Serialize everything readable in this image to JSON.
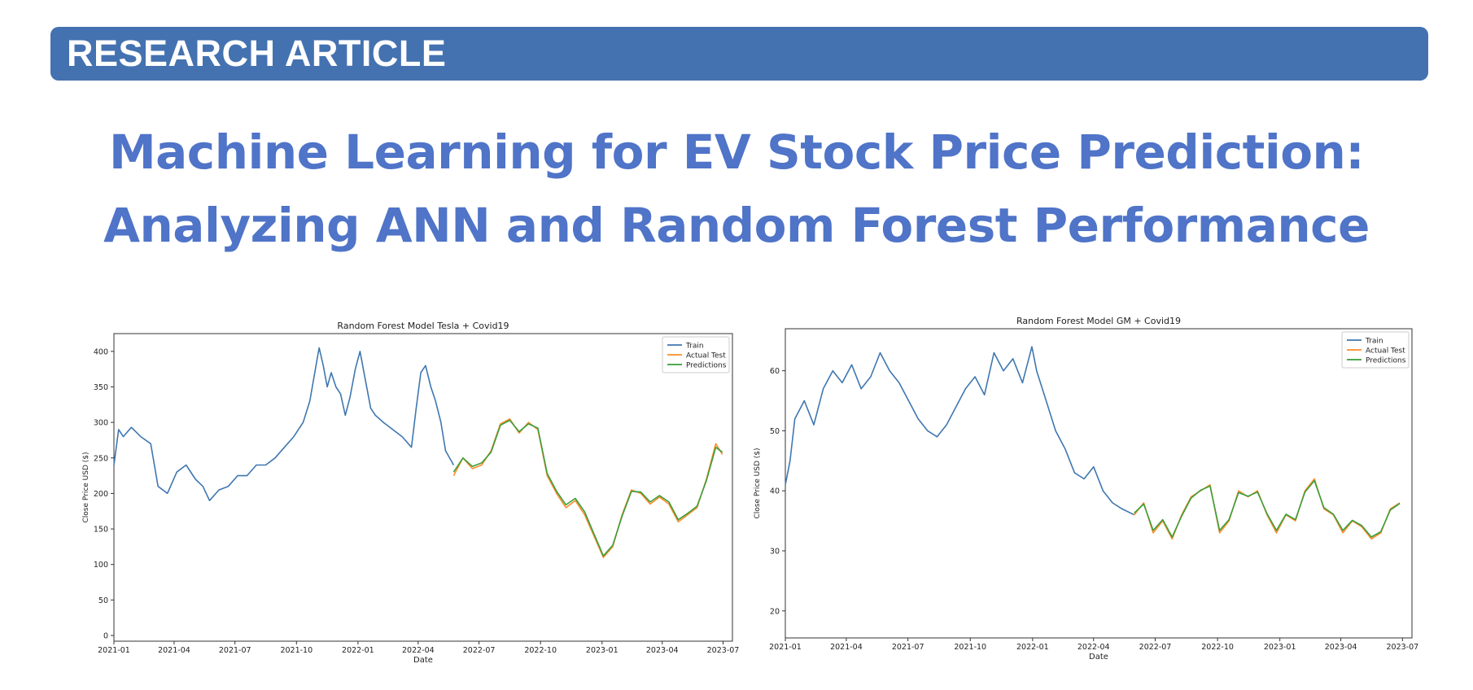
{
  "header": {
    "banner_label": "RESEARCH ARTICLE",
    "title_line_1": "Machine Learning for EV Stock Price Prediction:",
    "title_line_2": "Analyzing ANN and Random Forest Performance",
    "banner_color": "#4472b0",
    "title_color": "#4f74c8"
  },
  "series_colors": {
    "Train": "#3f77b0",
    "Actual Test": "#ff8c2a",
    "Predictions": "#3a9e3a"
  },
  "chart_data": [
    {
      "type": "line",
      "title": "Random Forest Model Tesla + Covid19",
      "xlabel": "Date",
      "ylabel": "Close Price USD ($)",
      "xlim": [
        "2021-01-01",
        "2023-07-15"
      ],
      "ylim": [
        -8,
        425
      ],
      "xticks": [
        "2021-01",
        "2021-04",
        "2021-07",
        "2021-10",
        "2022-01",
        "2022-04",
        "2022-07",
        "2022-10",
        "2023-01",
        "2023-04",
        "2023-07"
      ],
      "yticks": [
        0,
        50,
        100,
        150,
        200,
        250,
        300,
        350,
        400
      ],
      "legend_position": "top-right",
      "grid": false,
      "series": [
        {
          "name": "Train",
          "x": [
            "2021-01-01",
            "2021-01-08",
            "2021-01-15",
            "2021-01-27",
            "2021-02-10",
            "2021-02-25",
            "2021-03-08",
            "2021-03-22",
            "2021-04-05",
            "2021-04-19",
            "2021-05-03",
            "2021-05-14",
            "2021-05-24",
            "2021-06-07",
            "2021-06-21",
            "2021-07-05",
            "2021-07-19",
            "2021-08-02",
            "2021-08-16",
            "2021-08-30",
            "2021-09-13",
            "2021-09-27",
            "2021-10-11",
            "2021-10-21",
            "2021-11-01",
            "2021-11-04",
            "2021-11-10",
            "2021-11-16",
            "2021-11-22",
            "2021-11-29",
            "2021-12-06",
            "2021-12-13",
            "2021-12-20",
            "2021-12-28",
            "2022-01-04",
            "2022-01-12",
            "2022-01-20",
            "2022-01-27",
            "2022-02-08",
            "2022-02-22",
            "2022-03-08",
            "2022-03-22",
            "2022-03-29",
            "2022-04-05",
            "2022-04-12",
            "2022-04-20",
            "2022-04-27",
            "2022-05-05",
            "2022-05-12",
            "2022-05-24"
          ],
          "values": [
            240,
            290,
            280,
            293,
            280,
            270,
            210,
            200,
            230,
            240,
            220,
            210,
            190,
            205,
            210,
            225,
            225,
            240,
            240,
            250,
            265,
            280,
            300,
            330,
            390,
            405,
            380,
            350,
            370,
            350,
            340,
            310,
            335,
            375,
            400,
            360,
            320,
            310,
            300,
            290,
            280,
            265,
            320,
            370,
            380,
            350,
            330,
            300,
            260,
            240
          ]
        },
        {
          "name": "Actual Test",
          "x": [
            "2022-05-24",
            "2022-06-07",
            "2022-06-21",
            "2022-07-05",
            "2022-07-19",
            "2022-08-02",
            "2022-08-16",
            "2022-08-30",
            "2022-09-13",
            "2022-09-27",
            "2022-10-11",
            "2022-10-25",
            "2022-11-08",
            "2022-11-22",
            "2022-12-06",
            "2022-12-20",
            "2023-01-03",
            "2023-01-17",
            "2023-01-31",
            "2023-02-14",
            "2023-02-28",
            "2023-03-14",
            "2023-03-28",
            "2023-04-11",
            "2023-04-25",
            "2023-05-09",
            "2023-05-23",
            "2023-06-06",
            "2023-06-20",
            "2023-06-30"
          ],
          "values": [
            225,
            250,
            235,
            240,
            260,
            298,
            305,
            285,
            300,
            290,
            225,
            200,
            180,
            190,
            170,
            140,
            110,
            125,
            170,
            205,
            200,
            185,
            195,
            185,
            160,
            170,
            180,
            220,
            270,
            255
          ]
        },
        {
          "name": "Predictions",
          "x": [
            "2022-05-24",
            "2022-06-07",
            "2022-06-21",
            "2022-07-05",
            "2022-07-19",
            "2022-08-02",
            "2022-08-16",
            "2022-08-30",
            "2022-09-13",
            "2022-09-27",
            "2022-10-11",
            "2022-10-25",
            "2022-11-08",
            "2022-11-22",
            "2022-12-06",
            "2022-12-20",
            "2023-01-03",
            "2023-01-17",
            "2023-01-31",
            "2023-02-14",
            "2023-02-28",
            "2023-03-14",
            "2023-03-28",
            "2023-04-11",
            "2023-04-25",
            "2023-05-09",
            "2023-05-23",
            "2023-06-06",
            "2023-06-20",
            "2023-06-30"
          ],
          "values": [
            230,
            250,
            238,
            243,
            258,
            296,
            303,
            287,
            298,
            292,
            228,
            203,
            184,
            193,
            174,
            143,
            112,
            127,
            168,
            203,
            202,
            188,
            197,
            188,
            163,
            172,
            182,
            218,
            265,
            258
          ]
        }
      ]
    },
    {
      "type": "line",
      "title": "Random Forest Model GM + Covid19",
      "xlabel": "Date",
      "ylabel": "Close Price USD ($)",
      "xlim": [
        "2021-01-01",
        "2023-07-15"
      ],
      "ylim": [
        15.5,
        67
      ],
      "xticks": [
        "2021-01",
        "2021-04",
        "2021-07",
        "2021-10",
        "2022-01",
        "2022-04",
        "2022-07",
        "2022-10",
        "2023-01",
        "2023-04",
        "2023-07"
      ],
      "yticks": [
        20,
        30,
        40,
        50,
        60
      ],
      "legend_position": "top-right",
      "grid": false,
      "series": [
        {
          "name": "Train",
          "x": [
            "2021-01-01",
            "2021-01-08",
            "2021-01-15",
            "2021-01-29",
            "2021-02-12",
            "2021-02-26",
            "2021-03-12",
            "2021-03-26",
            "2021-04-09",
            "2021-04-23",
            "2021-05-07",
            "2021-05-21",
            "2021-06-04",
            "2021-06-18",
            "2021-07-02",
            "2021-07-16",
            "2021-07-30",
            "2021-08-13",
            "2021-08-27",
            "2021-09-10",
            "2021-09-24",
            "2021-10-08",
            "2021-10-22",
            "2021-11-05",
            "2021-11-19",
            "2021-12-03",
            "2021-12-17",
            "2021-12-31",
            "2022-01-07",
            "2022-01-21",
            "2022-02-04",
            "2022-02-18",
            "2022-03-04",
            "2022-03-18",
            "2022-04-01",
            "2022-04-15",
            "2022-04-29",
            "2022-05-13",
            "2022-05-31"
          ],
          "values": [
            41,
            45,
            52,
            55,
            51,
            57,
            60,
            58,
            61,
            57,
            59,
            63,
            60,
            58,
            55,
            52,
            50,
            49,
            51,
            54,
            57,
            59,
            56,
            63,
            60,
            62,
            58,
            64,
            60,
            55,
            50,
            47,
            43,
            42,
            44,
            40,
            38,
            37,
            36
          ]
        },
        {
          "name": "Actual Test",
          "x": [
            "2022-05-31",
            "2022-06-14",
            "2022-06-28",
            "2022-07-12",
            "2022-07-26",
            "2022-08-09",
            "2022-08-23",
            "2022-09-06",
            "2022-09-20",
            "2022-10-04",
            "2022-10-18",
            "2022-11-01",
            "2022-11-15",
            "2022-11-29",
            "2022-12-13",
            "2022-12-27",
            "2023-01-10",
            "2023-01-24",
            "2023-02-07",
            "2023-02-21",
            "2023-03-07",
            "2023-03-21",
            "2023-04-04",
            "2023-04-18",
            "2023-05-02",
            "2023-05-16",
            "2023-05-30",
            "2023-06-13",
            "2023-06-27"
          ],
          "values": [
            36,
            38,
            33,
            35,
            32,
            36,
            39,
            40,
            41,
            33,
            35,
            40,
            39,
            40,
            36,
            33,
            36,
            35,
            40,
            42,
            37,
            36,
            33,
            35,
            34,
            32,
            33,
            37,
            38
          ]
        },
        {
          "name": "Predictions",
          "x": [
            "2022-05-31",
            "2022-06-14",
            "2022-06-28",
            "2022-07-12",
            "2022-07-26",
            "2022-08-09",
            "2022-08-23",
            "2022-09-06",
            "2022-09-20",
            "2022-10-04",
            "2022-10-18",
            "2022-11-01",
            "2022-11-15",
            "2022-11-29",
            "2022-12-13",
            "2022-12-27",
            "2023-01-10",
            "2023-01-24",
            "2023-02-07",
            "2023-02-21",
            "2023-03-07",
            "2023-03-21",
            "2023-04-04",
            "2023-04-18",
            "2023-05-02",
            "2023-05-16",
            "2023-05-30",
            "2023-06-13",
            "2023-06-27"
          ],
          "values": [
            36.3,
            37.8,
            33.4,
            35.2,
            32.3,
            35.8,
            38.8,
            40.1,
            40.8,
            33.4,
            35.2,
            39.7,
            39.1,
            39.8,
            36.2,
            33.4,
            36.1,
            35.2,
            39.8,
            41.7,
            37.2,
            36.1,
            33.4,
            35.1,
            34.2,
            32.3,
            33.2,
            36.8,
            37.9
          ]
        }
      ]
    }
  ]
}
